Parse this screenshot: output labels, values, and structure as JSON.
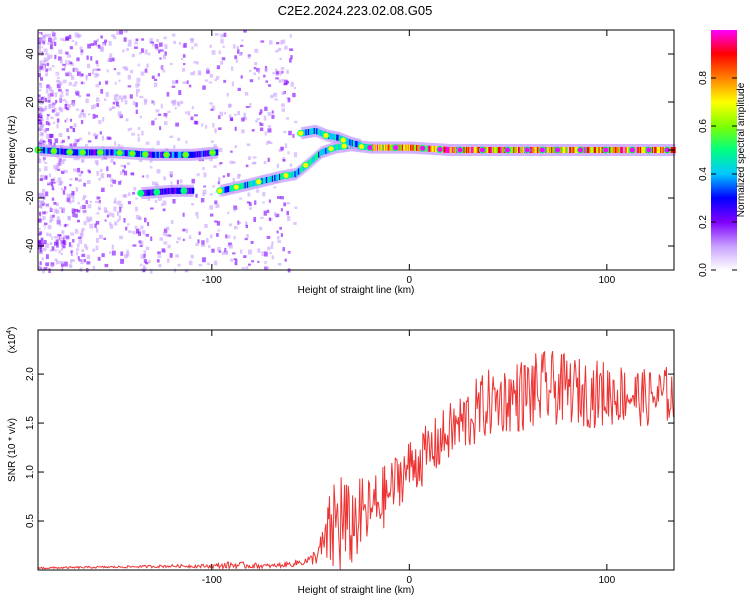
{
  "title": "C2E2.2024.223.02.08.G05",
  "chart_data": [
    {
      "type": "heatmap",
      "xlabel": "Height of straight line (km)",
      "ylabel": "Frequency (Hz)",
      "xlim": [
        -188,
        134
      ],
      "ylim": [
        -50,
        50
      ],
      "xticks": [
        -100,
        0,
        100
      ],
      "xtick_labels": [
        "-100",
        "0",
        "100"
      ],
      "yticks": [
        -40,
        -20,
        0,
        20,
        40
      ],
      "ytick_labels": [
        "-40",
        "-20",
        "0",
        "20",
        "40"
      ],
      "colorbar": {
        "label": "Normalized spectral amplitude",
        "range": [
          0,
          1
        ],
        "ticks": [
          0.0,
          0.2,
          0.4,
          0.6,
          0.8
        ],
        "tick_labels": [
          "0.0",
          "0.2",
          "0.4",
          "0.6",
          "0.8"
        ],
        "colors": [
          "#ffffff",
          "#c8a0ff",
          "#8000ff",
          "#0000ff",
          "#00c8ff",
          "#00ff80",
          "#80ff00",
          "#ffff00",
          "#ff8000",
          "#ff0000",
          "#ff00ff"
        ]
      },
      "ridges": [
        {
          "x": [
            -188,
            -170,
            -150,
            -130,
            -110,
            -98
          ],
          "freq": [
            0,
            -1,
            -1,
            -2,
            -2,
            -1
          ],
          "amplitude": 0.35
        },
        {
          "x": [
            -136,
            -120,
            -110
          ],
          "freq": [
            -18,
            -17,
            -17
          ],
          "amplitude": 0.3
        },
        {
          "x": [
            -96,
            -85,
            -75,
            -65,
            -58,
            -52,
            -45,
            -38,
            -30,
            -20
          ],
          "freq": [
            -17,
            -15,
            -13,
            -11,
            -10,
            -6,
            -1,
            1,
            2,
            1
          ],
          "amplitude": 0.5
        },
        {
          "x": [
            -55,
            -48,
            -42,
            -36,
            -30,
            -25
          ],
          "freq": [
            7,
            8,
            6,
            5,
            3,
            2
          ],
          "amplitude": 0.45
        },
        {
          "x": [
            -20,
            0,
            20,
            60,
            100,
            134
          ],
          "freq": [
            1,
            1,
            0,
            0,
            0,
            0
          ],
          "amplitude": 0.9
        }
      ]
    },
    {
      "type": "line",
      "xlabel": "Height of straight line (km)",
      "ylabel": "SNR (10 * v/v)",
      "y_multiplier_label": "(x10",
      "y_multiplier_exp": "4",
      "xlim": [
        -188,
        134
      ],
      "ylim": [
        0,
        2.45
      ],
      "xticks": [
        -100,
        0,
        100
      ],
      "xtick_labels": [
        "-100",
        "0",
        "100"
      ],
      "yticks": [
        0.5,
        1.0,
        1.5,
        2.0
      ],
      "ytick_labels": [
        "0.5",
        "1.0",
        "1.5",
        "2.0"
      ],
      "color": "#ee3333",
      "envelope": {
        "x": [
          -188,
          -150,
          -120,
          -100,
          -90,
          -70,
          -60,
          -50,
          -45,
          -42,
          -38,
          -35,
          -30,
          -28,
          -20,
          -15,
          -10,
          -5,
          0,
          10,
          20,
          30,
          40,
          50,
          60,
          70,
          80,
          90,
          100,
          110,
          120,
          134
        ],
        "mean": [
          0.02,
          0.03,
          0.04,
          0.04,
          0.05,
          0.04,
          0.06,
          0.1,
          0.2,
          0.3,
          0.45,
          0.5,
          0.4,
          0.5,
          0.6,
          0.7,
          0.8,
          0.95,
          1.05,
          1.2,
          1.4,
          1.55,
          1.7,
          1.75,
          1.8,
          1.85,
          1.85,
          1.8,
          1.8,
          1.8,
          1.75,
          1.8
        ],
        "spread": [
          0.01,
          0.01,
          0.015,
          0.02,
          0.04,
          0.02,
          0.03,
          0.05,
          0.15,
          0.3,
          0.6,
          0.7,
          0.4,
          0.45,
          0.35,
          0.35,
          0.3,
          0.3,
          0.3,
          0.3,
          0.3,
          0.35,
          0.35,
          0.35,
          0.4,
          0.4,
          0.35,
          0.35,
          0.35,
          0.3,
          0.3,
          0.3
        ]
      }
    }
  ]
}
